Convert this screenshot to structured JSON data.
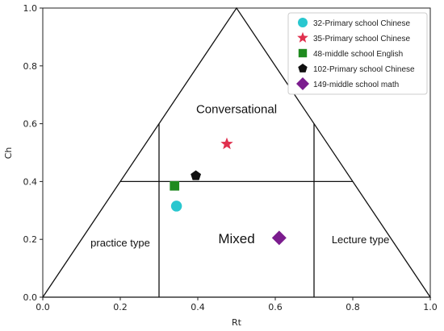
{
  "chart_data": {
    "type": "scatter",
    "xlabel": "Rt",
    "ylabel": "Ch",
    "xlim": [
      0,
      1
    ],
    "ylim": [
      0,
      1
    ],
    "x_ticks": [
      "0.0",
      "0.2",
      "0.4",
      "0.6",
      "0.8",
      "1.0"
    ],
    "y_ticks": [
      "0.0",
      "0.2",
      "0.4",
      "0.6",
      "0.8",
      "1.0"
    ],
    "grid": false,
    "legend_position": "top-right",
    "regions": [
      {
        "label": "Conversational",
        "x": 0.5,
        "y": 0.65
      },
      {
        "label": "Mixed",
        "x": 0.5,
        "y": 0.2
      },
      {
        "label": "practice type",
        "x": 0.2,
        "y": 0.19
      },
      {
        "label": "Lecture type",
        "x": 0.82,
        "y": 0.2
      }
    ],
    "boundaries": {
      "triangle": [
        [
          0,
          0
        ],
        [
          0.5,
          1
        ],
        [
          1,
          0
        ]
      ],
      "horizontal_y": 0.4,
      "horizontal_x_range": [
        0.2,
        0.8
      ],
      "vertical_lines": [
        {
          "x": 0.3,
          "y_range": [
            0,
            0.6
          ]
        },
        {
          "x": 0.7,
          "y_range": [
            0,
            0.6
          ]
        }
      ]
    },
    "series": [
      {
        "name": "32-Primary school Chinese",
        "marker": "circle",
        "color": "#29c7cf",
        "x": 0.345,
        "y": 0.315
      },
      {
        "name": "35-Primary school Chinese",
        "marker": "star",
        "color": "#e0304e",
        "x": 0.475,
        "y": 0.53
      },
      {
        "name": "48-middle school English",
        "marker": "square",
        "color": "#1f8a1f",
        "x": 0.34,
        "y": 0.385
      },
      {
        "name": "102-Primary school Chinese",
        "marker": "pentagon",
        "color": "#111111",
        "x": 0.395,
        "y": 0.42
      },
      {
        "name": "149-middle school math",
        "marker": "diamond",
        "color": "#7b1c8e",
        "x": 0.61,
        "y": 0.205
      }
    ]
  }
}
